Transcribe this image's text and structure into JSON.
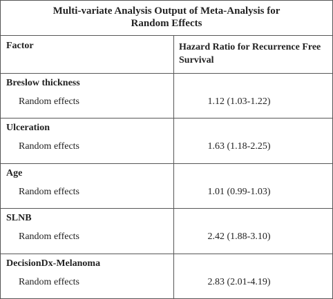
{
  "title": "Multi-variate Analysis Output of Meta-Analysis for Random Effects",
  "header": [
    "Factor",
    "Hazard Ratio for Recurrence Free Survival"
  ],
  "groups": [
    {
      "factor": "Breslow thickness",
      "rows": [
        {
          "label": "Random effects",
          "value": "1.12 (1.03-1.22)"
        }
      ]
    },
    {
      "factor": "Ulceration",
      "rows": [
        {
          "label": "Random effects",
          "value": "1.63 (1.18-2.25)"
        }
      ]
    },
    {
      "factor": "Age",
      "rows": [
        {
          "label": "Random effects",
          "value": "1.01 (0.99-1.03)"
        }
      ]
    },
    {
      "factor": "SLNB",
      "rows": [
        {
          "label": "Random effects",
          "value": "2.42 (1.88-3.10)"
        }
      ]
    },
    {
      "factor": "DecisionDx-Melanoma",
      "rows": [
        {
          "label": "Random effects",
          "value": "2.83 (2.01-4.19)"
        }
      ]
    }
  ]
}
